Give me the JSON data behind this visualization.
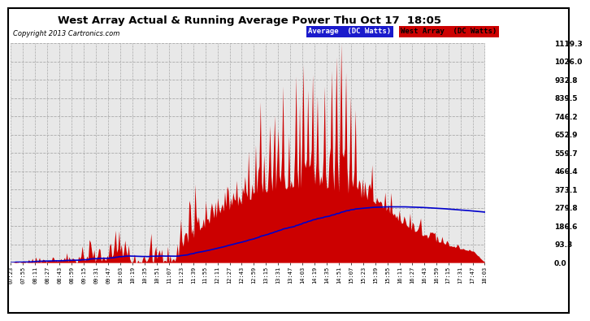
{
  "title": "West Array Actual & Running Average Power Thu Oct 17  18:05",
  "copyright": "Copyright 2013 Cartronics.com",
  "legend_avg": "Average  (DC Watts)",
  "legend_west": "West Array  (DC Watts)",
  "bg_color": "#ffffff",
  "plot_bg_color": "#e8e8e8",
  "grid_color": "#aaaaaa",
  "fill_color": "#cc0000",
  "avg_line_color": "#0000cc",
  "ylabel_right_values": [
    0.0,
    93.3,
    186.6,
    279.8,
    373.1,
    466.4,
    559.7,
    652.9,
    746.2,
    839.5,
    932.8,
    1026.0,
    1119.3
  ],
  "x_tick_labels": [
    "07:23",
    "07:55",
    "08:11",
    "08:27",
    "08:43",
    "08:59",
    "09:15",
    "09:31",
    "09:47",
    "10:03",
    "10:19",
    "10:35",
    "10:51",
    "11:07",
    "11:23",
    "11:39",
    "11:55",
    "12:11",
    "12:27",
    "12:43",
    "12:59",
    "13:15",
    "13:31",
    "13:47",
    "14:03",
    "14:19",
    "14:35",
    "14:51",
    "15:07",
    "15:23",
    "15:39",
    "15:55",
    "16:11",
    "16:27",
    "16:43",
    "16:59",
    "17:15",
    "17:31",
    "17:47",
    "18:03"
  ],
  "ymax": 1119.3,
  "ymin": 0.0
}
